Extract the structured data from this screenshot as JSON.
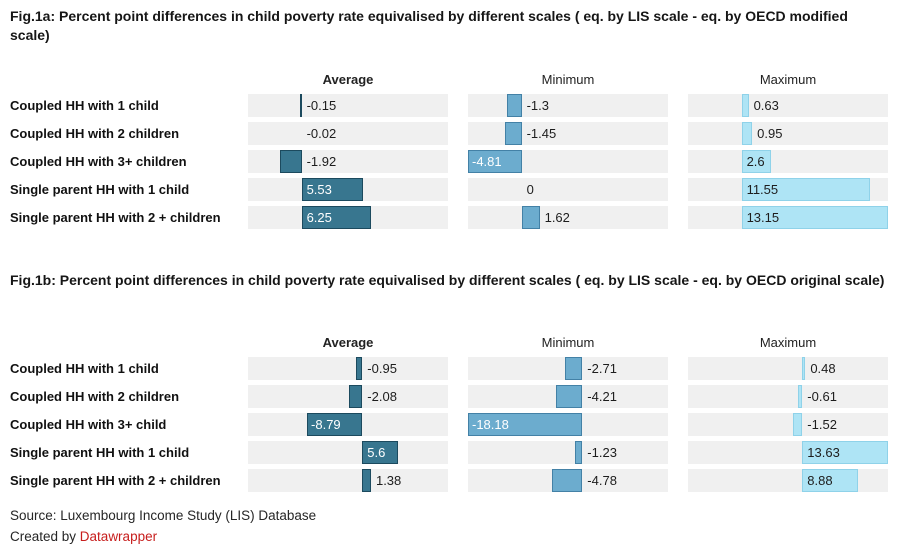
{
  "chart_data": [
    {
      "type": "bar",
      "orientation": "horizontal",
      "title": "Fig.1a: Percent point differences in child poverty rate equivalised by different scales ( eq. by LIS scale - eq. by OECD modified scale)",
      "categories": [
        "Coupled HH with 1 child",
        "Coupled HH with 2 children",
        "Coupled HH with 3+ children",
        "Single parent HH with 1 child",
        "Single parent HH with 2 + children"
      ],
      "series": [
        {
          "name": "Average",
          "values": [
            -0.15,
            -0.02,
            -1.92,
            5.53,
            6.25
          ]
        },
        {
          "name": "Minimum",
          "values": [
            -1.3,
            -1.45,
            -4.81,
            0,
            1.62
          ]
        },
        {
          "name": "Maximum",
          "values": [
            0.63,
            0.95,
            2.6,
            11.55,
            13.15
          ]
        }
      ],
      "xlim": [
        -4.81,
        13.15
      ],
      "grid": false,
      "legend_position": "none"
    },
    {
      "type": "bar",
      "orientation": "horizontal",
      "title": "Fig.1b: Percent point differences in child poverty rate equivalised by different scales ( eq. by LIS scale - eq. by OECD original scale)",
      "categories": [
        "Coupled HH with 1 child",
        "Coupled HH with 2 children",
        "Coupled HH with 3+ child",
        "Single parent HH with 1 child",
        "Single parent HH with 2 + children"
      ],
      "series": [
        {
          "name": "Average",
          "values": [
            -0.95,
            -2.08,
            -8.79,
            5.6,
            1.38
          ]
        },
        {
          "name": "Minimum",
          "values": [
            -2.71,
            -4.21,
            -18.18,
            -1.23,
            -4.78
          ]
        },
        {
          "name": "Maximum",
          "values": [
            0.48,
            -0.61,
            -1.52,
            13.63,
            8.88
          ]
        }
      ],
      "xlim": [
        -18.18,
        13.63
      ],
      "grid": false,
      "legend_position": "none"
    }
  ],
  "footer": {
    "source": "Source: Luxembourg Income Study (LIS) Database",
    "created_by": "Created by ",
    "creator": "Datawrapper"
  },
  "colors": {
    "text": "#1d1d1d",
    "track": "#f0f0f0",
    "datawrapper_red": "#c71e1d",
    "columns": [
      {
        "fill": "#38768f",
        "border": "#1c4a5e",
        "inside_text": "#ffffff"
      },
      {
        "fill": "#6cacce",
        "border": "#4381a6",
        "inside_text": "#ffffff"
      },
      {
        "fill": "#aee4f5",
        "border": "#8fd2e9",
        "inside_text": "#1d1d1d"
      }
    ]
  }
}
